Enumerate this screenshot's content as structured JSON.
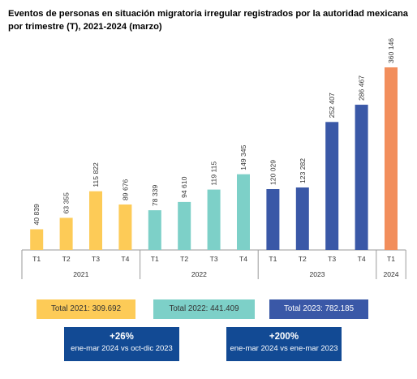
{
  "title": "Eventos de personas en situación migratoria irregular registrados por la autoridad mexicana por trimestre (T), 2021-2024 (marzo)",
  "colors": {
    "2021": "#FDCB57",
    "2022": "#7DD0C8",
    "2023": "#3A58A7",
    "2024": "#F28E5C",
    "box_dark": "#124A94",
    "text": "#222222"
  },
  "chart_data": {
    "type": "bar",
    "categories": [
      "T1",
      "T2",
      "T3",
      "T4",
      "T1",
      "T2",
      "T3",
      "T4",
      "T1",
      "T2",
      "T3",
      "T4",
      "T1"
    ],
    "years": [
      "2021",
      "2022",
      "2023",
      "2024"
    ],
    "year_index": [
      0,
      0,
      0,
      0,
      1,
      1,
      1,
      1,
      2,
      2,
      2,
      2,
      3
    ],
    "values": [
      40839,
      63355,
      115822,
      89676,
      78339,
      94610,
      119115,
      149345,
      120029,
      123282,
      252407,
      286467,
      360146
    ],
    "value_labels": [
      "40 839",
      "63 355",
      "115 822",
      "89 676",
      "78 339",
      "94 610",
      "119 115",
      "149 345",
      "120 029",
      "123 282",
      "252 407",
      "286 467",
      "360 146"
    ],
    "ylim": [
      0,
      360146
    ]
  },
  "totals": [
    {
      "label": "Total 2021: 309.692",
      "color": "#FDCB57"
    },
    {
      "label": "Total 2022: 441.409",
      "color": "#7DD0C8"
    },
    {
      "label": "Total 2023: 782.185",
      "color": "#3A58A7"
    }
  ],
  "changes": [
    {
      "value": "+26%",
      "label": "ene-mar 2024 vs oct-dic 2023"
    },
    {
      "value": "+200%",
      "label": "ene-mar 2024 vs ene-mar 2023"
    }
  ]
}
